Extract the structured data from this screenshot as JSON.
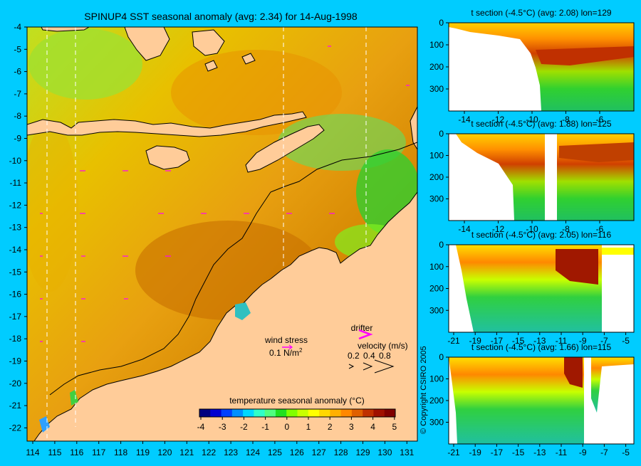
{
  "main_map": {
    "title": "SPINUP4 SST seasonal anomaly (avg: 2.34) for 14-Aug-1998",
    "lat_ticks": [
      "-4",
      "-5",
      "-6",
      "-7",
      "-8",
      "-9",
      "-10",
      "-11",
      "-12",
      "-13",
      "-14",
      "-15",
      "-16",
      "-17",
      "-18",
      "-19",
      "-20",
      "-21",
      "-22"
    ],
    "lon_ticks": [
      "114",
      "115",
      "116",
      "117",
      "118",
      "119",
      "120",
      "121",
      "122",
      "123",
      "124",
      "125",
      "126",
      "127",
      "128",
      "129",
      "130",
      "131"
    ],
    "wind_stress": {
      "label": "wind stress",
      "value": "0.1 N/m",
      "sup": "2"
    },
    "drifter": {
      "label": "drifter",
      "velocity_label": "velocity (m/s)",
      "scale": [
        "0.2",
        "0.4",
        "0.8"
      ],
      "arrows": [
        ">",
        ">>",
        ">>"
      ]
    },
    "colorbar": {
      "title": "temperature seasonal anomaly (°C)",
      "ticks": [
        "-4",
        "-3",
        "-2",
        "-1",
        "0",
        "1",
        "2",
        "3",
        "4",
        "5"
      ],
      "colors": [
        "#00007f",
        "#0000d0",
        "#0040ff",
        "#0090ff",
        "#00d8ff",
        "#30ffc8",
        "#50ff80",
        "#20e020",
        "#80ff00",
        "#c8ff00",
        "#ffff00",
        "#ffd800",
        "#ffb000",
        "#ff8800",
        "#e06000",
        "#c03000",
        "#a01000",
        "#800000"
      ]
    }
  },
  "copyright": "© Copyright CSIRO 2005",
  "sections": [
    {
      "title": "t section (-4.5°C) (avg: 2.08) lon=129",
      "depth_ticks": [
        "0",
        "100",
        "200",
        "300"
      ],
      "x_ticks": [
        "-14",
        "-12",
        "-10",
        "-8",
        "-6"
      ]
    },
    {
      "title": "t section (-4.5°C) (avg: 1.88) lon=125",
      "depth_ticks": [
        "0",
        "100",
        "200",
        "300"
      ],
      "x_ticks": [
        "-14",
        "-12",
        "-10",
        "-8",
        "-6"
      ]
    },
    {
      "title": "t section (-4.5°C) (avg: 2.05) lon=116",
      "depth_ticks": [
        "0",
        "100",
        "200",
        "300"
      ],
      "x_ticks": [
        "-21",
        "-19",
        "-17",
        "-15",
        "-13",
        "-11",
        "-9",
        "-7",
        "-5"
      ]
    },
    {
      "title": "t section (-4.5°C) (avg: 1.66) lon=115",
      "depth_ticks": [
        "0",
        "100",
        "200",
        "300"
      ],
      "x_ticks": [
        "-21",
        "-19",
        "-17",
        "-15",
        "-13",
        "-11",
        "-9",
        "-7",
        "-5"
      ]
    }
  ]
}
